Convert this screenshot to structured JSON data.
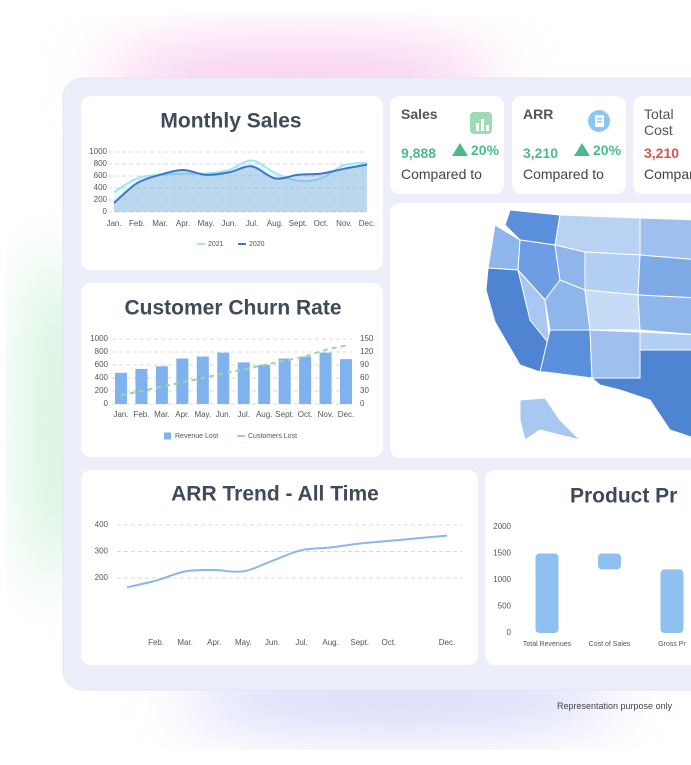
{
  "kpis": [
    {
      "label": "Sales",
      "value": "9,888",
      "change": "20%",
      "note": "Compared to"
    },
    {
      "label": "ARR",
      "value": "3,210",
      "change": "20%",
      "note": "Compared to"
    },
    {
      "label": "Total Cost",
      "value": "3,210",
      "note": "Compared to"
    }
  ],
  "chart_data": [
    {
      "type": "line",
      "title": "Monthly Sales",
      "categories": [
        "Jan.",
        "Feb.",
        "Mar.",
        "Apr.",
        "May.",
        "Jun.",
        "Jul.",
        "Aug.",
        "Sept.",
        "Oct.",
        "Nov.",
        "Dec."
      ],
      "series": [
        {
          "name": "2021",
          "color": "#9fe6f2",
          "values": [
            330,
            560,
            620,
            640,
            640,
            700,
            860,
            650,
            520,
            560,
            780,
            820
          ]
        },
        {
          "name": "2020",
          "color": "#3a78c9",
          "values": [
            150,
            480,
            620,
            700,
            620,
            660,
            760,
            560,
            620,
            640,
            720,
            790
          ]
        }
      ],
      "ylim": [
        0,
        1000
      ],
      "yticks": [
        0,
        200,
        400,
        600,
        800,
        1000
      ],
      "grid": true
    },
    {
      "type": "bar",
      "title": "Customer Churn Rate",
      "categories": [
        "Jan.",
        "Feb.",
        "Mar.",
        "Apr.",
        "May.",
        "Jun.",
        "Jul.",
        "Aug.",
        "Sept.",
        "Oct.",
        "Nov.",
        "Dec."
      ],
      "series": [
        {
          "name": "Revenue Lost",
          "color": "#7fb2ee",
          "values": [
            480,
            540,
            580,
            700,
            730,
            790,
            640,
            600,
            700,
            730,
            790,
            690
          ]
        },
        {
          "name": "Customers Lost",
          "color": "#9bd6a6",
          "type": "line",
          "axis": "y2",
          "values": [
            20,
            30,
            40,
            50,
            60,
            70,
            80,
            90,
            100,
            110,
            125,
            135
          ]
        }
      ],
      "ylim": [
        0,
        1000
      ],
      "yticks": [
        0,
        200,
        400,
        600,
        800,
        1000
      ],
      "y2lim": [
        0,
        150
      ],
      "y2ticks": [
        0,
        30,
        60,
        90,
        120,
        150
      ],
      "grid": true
    },
    {
      "type": "line",
      "title": "ARR Trend - All Time",
      "categories": [
        null,
        "Feb.",
        "Mar.",
        "Apr.",
        "May.",
        "Jun.",
        "Jul.",
        "Aug.",
        "Sept.",
        "Oct.",
        null,
        "Dec."
      ],
      "series": [
        {
          "name": "ARR",
          "color": "#8ab8ea",
          "values": [
            165,
            190,
            225,
            230,
            225,
            265,
            305,
            315,
            330,
            340,
            350,
            360
          ]
        }
      ],
      "ylim": [
        0,
        400
      ],
      "yticks": [
        200,
        300,
        400
      ],
      "grid": true
    },
    {
      "type": "waterfall",
      "title": "Product Pr",
      "categories": [
        "Total Revenues",
        "Cost of Sales",
        "Gross Pr"
      ],
      "values": [
        1500,
        -300,
        1200
      ],
      "color": "#8ec1f0",
      "ylim": [
        0,
        2000
      ],
      "yticks": [
        0,
        500,
        1000,
        1500,
        2000
      ]
    }
  ],
  "caption": "Representation purpose only"
}
